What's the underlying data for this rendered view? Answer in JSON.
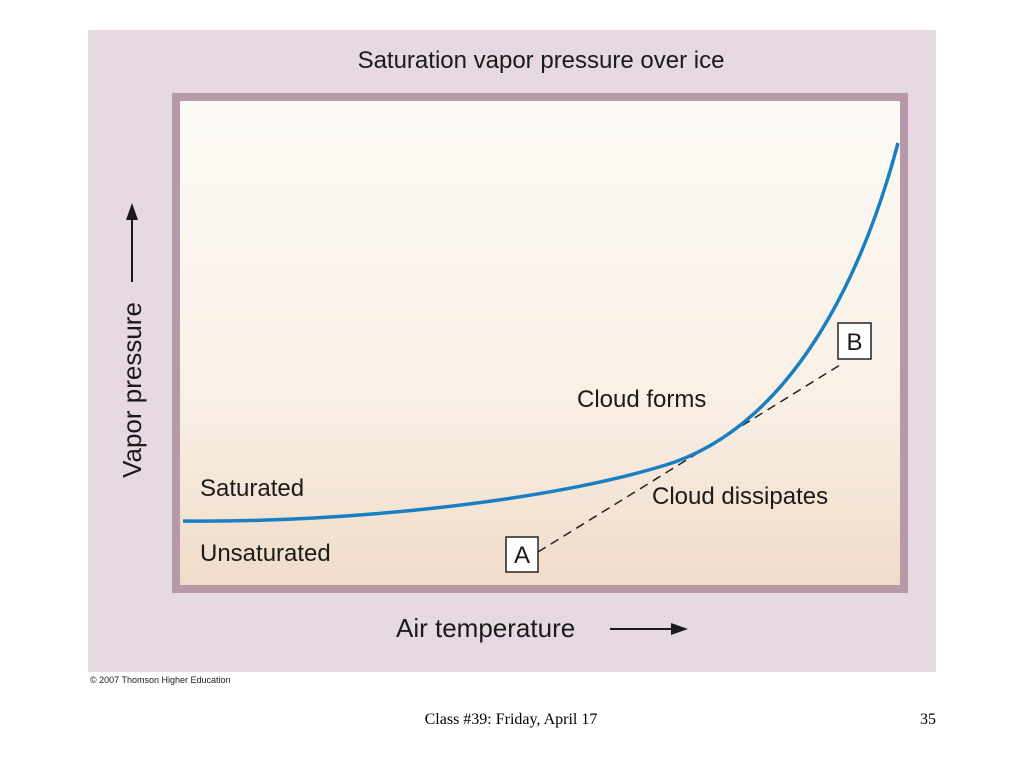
{
  "figure": {
    "title": "Saturation vapor pressure over ice",
    "y_label": "Vapor pressure",
    "x_label": "Air temperature",
    "labels": {
      "saturated": "Saturated",
      "unsaturated": "Unsaturated",
      "cloud_forms": "Cloud forms",
      "cloud_dissipates": "Cloud dissipates",
      "point_a": "A",
      "point_b": "B"
    },
    "copyright": "© 2007 Thomson Higher Education"
  },
  "footer": {
    "text": "Class #39: Friday, April 17",
    "page_number": "35"
  }
}
